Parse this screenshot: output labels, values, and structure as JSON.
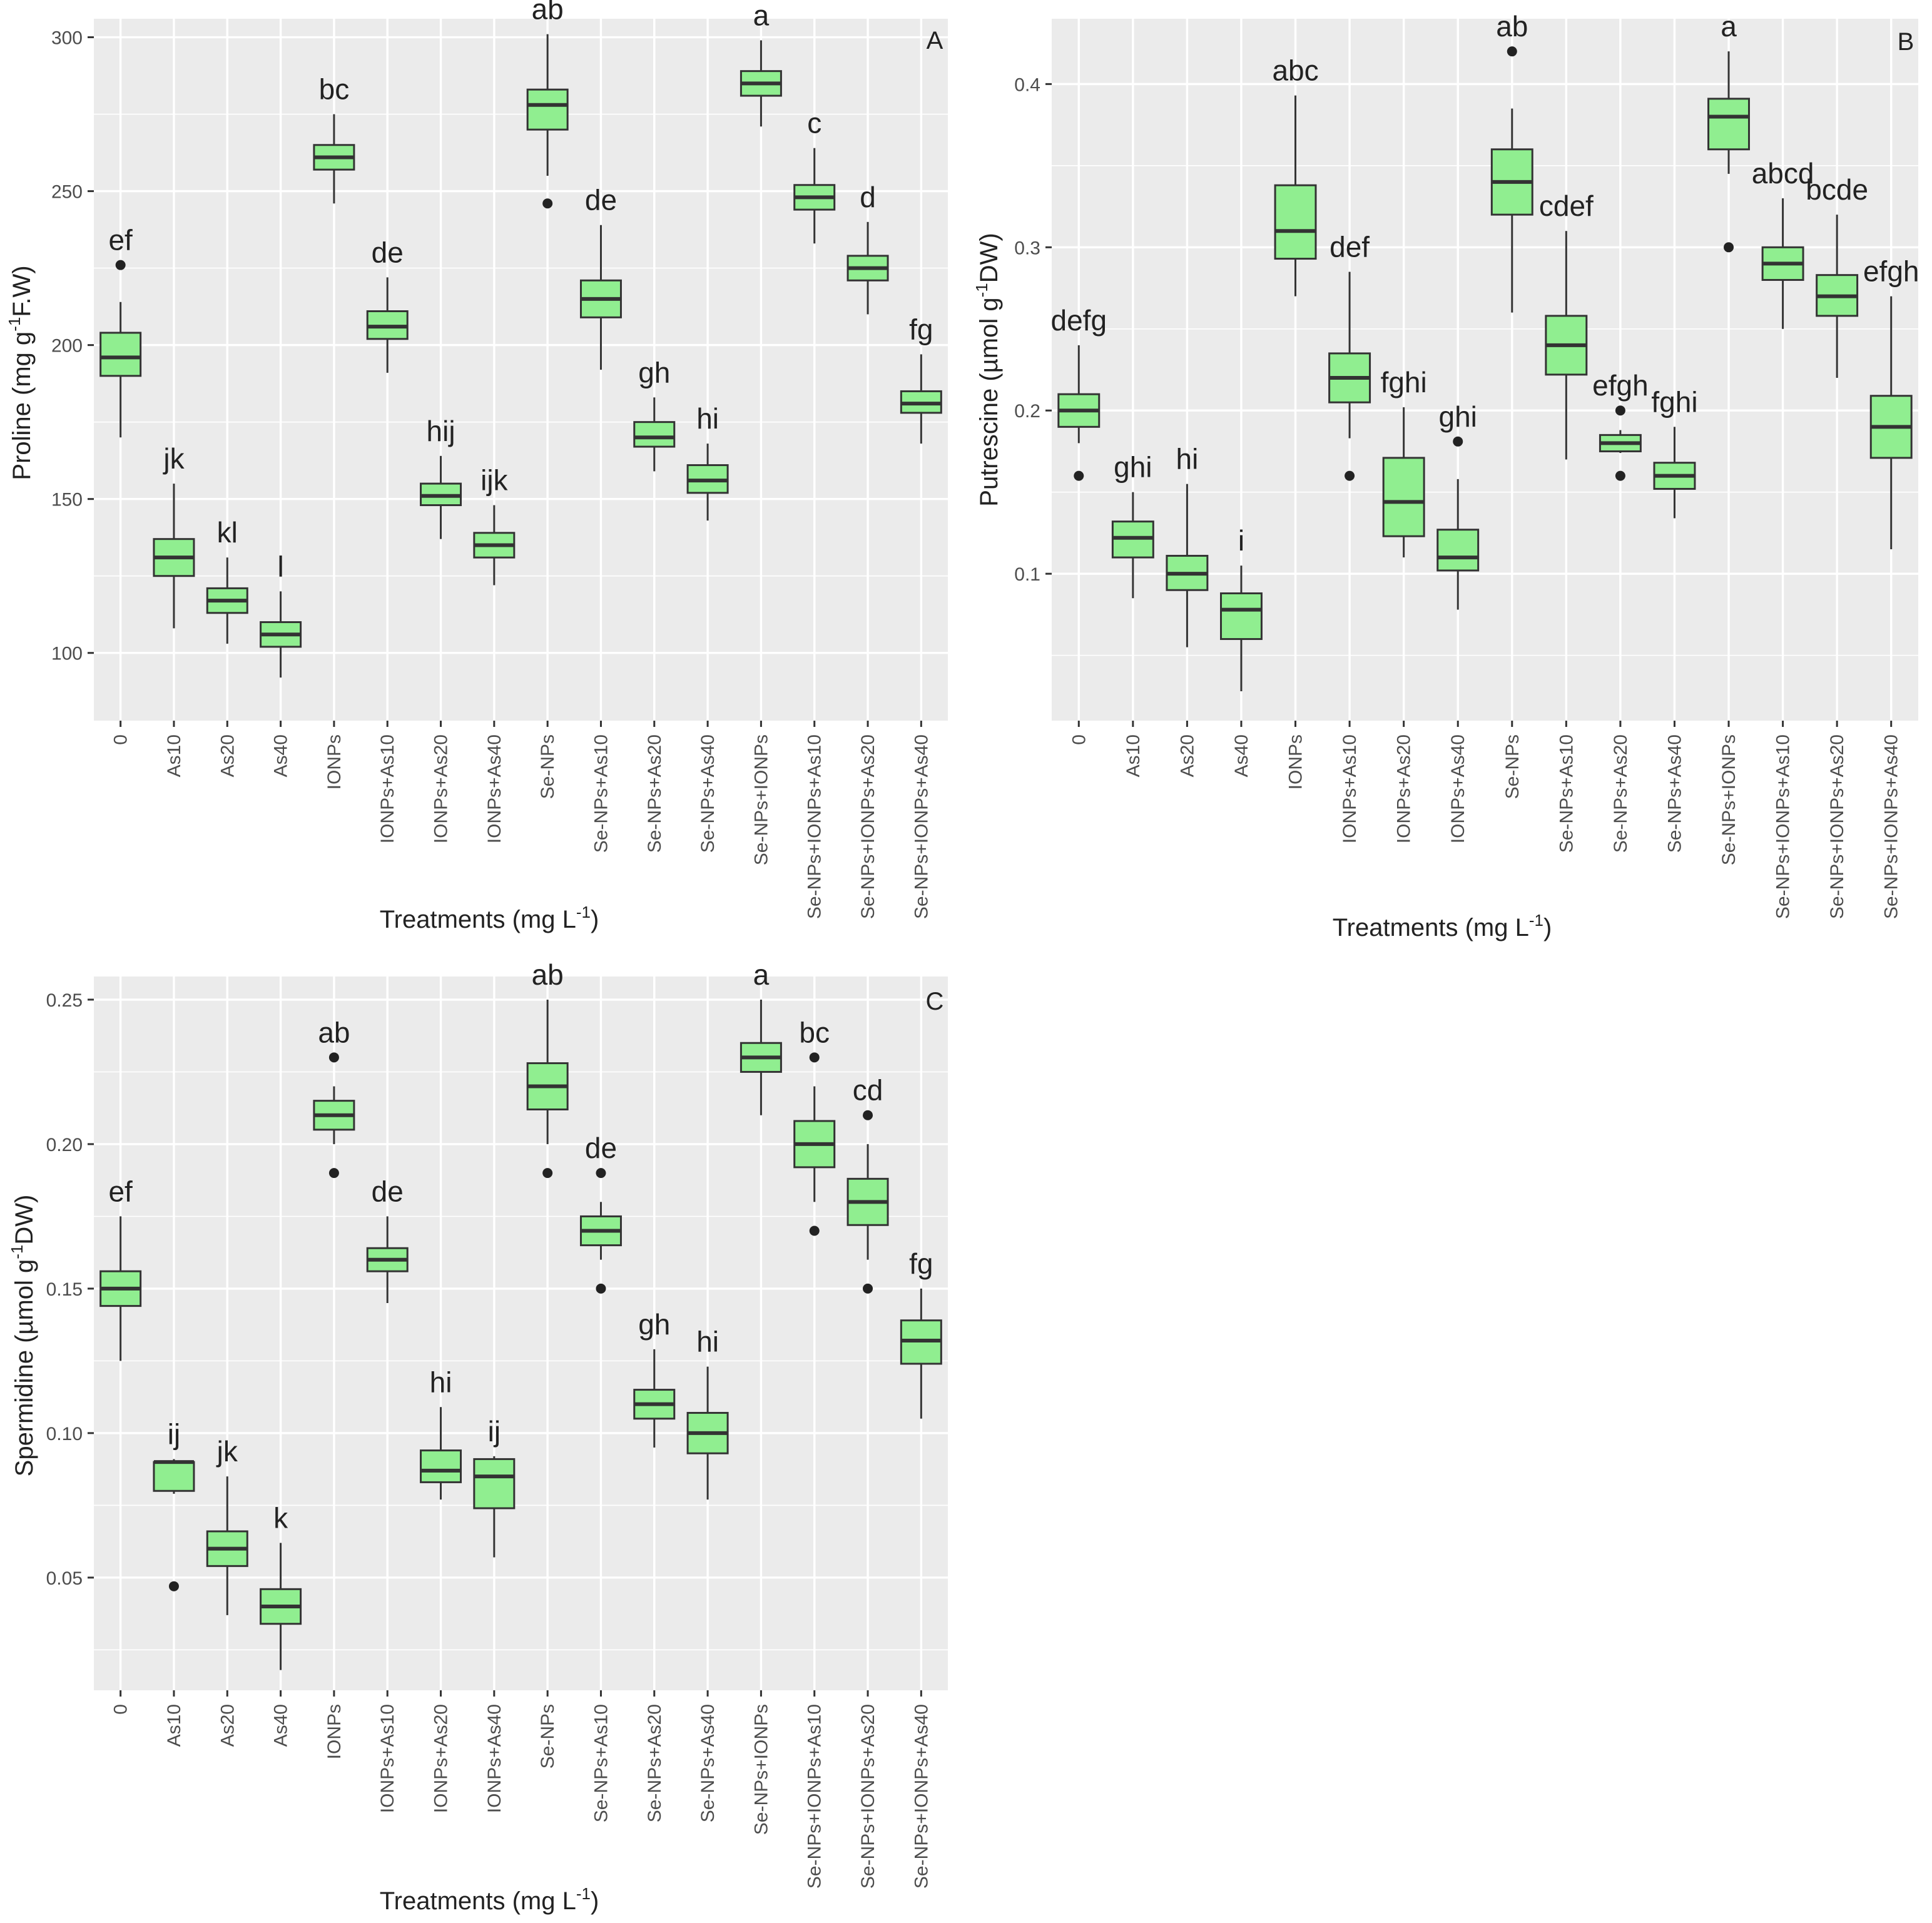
{
  "figure": {
    "background": "#ffffff",
    "panel_bg": "#ebebeb",
    "grid_color": "#ffffff",
    "box_fill": "#90ee90",
    "box_stroke": "#333333",
    "text_color": "#222222",
    "axis_text_color": "#4d4d4d"
  },
  "categories": [
    "0",
    "As10",
    "As20",
    "As40",
    "IONPs",
    "IONPs+As10",
    "IONPs+As20",
    "IONPs+As40",
    "Se-NPs",
    "Se-NPs+As10",
    "Se-NPs+As20",
    "Se-NPs+As40",
    "Se-NPs+IONPs",
    "Se-NPs+IONPs+As10",
    "Se-NPs+IONPs+As20",
    "Se-NPs+IONPs+As40"
  ],
  "xlabel": {
    "main": "Treatments (mg L",
    "sup": "-1",
    "end": ")"
  },
  "chart_data": [
    {
      "type": "box",
      "panel_label": "A",
      "ylabel": {
        "pre": "Proline (mg g",
        "sup": "-1",
        "post": "F.W)"
      },
      "ylim": [
        78,
        306
      ],
      "yticks": [
        100,
        150,
        200,
        250,
        300
      ],
      "ytick_labels": [
        "100",
        "150",
        "200",
        "250",
        "300"
      ],
      "boxes": [
        {
          "lo": 170,
          "q1": 190,
          "med": 196,
          "q3": 204,
          "hi": 214,
          "out": [
            226
          ],
          "letter": "ef"
        },
        {
          "lo": 108,
          "q1": 125,
          "med": 131,
          "q3": 137,
          "hi": 155,
          "out": [],
          "letter": "jk"
        },
        {
          "lo": 103,
          "q1": 113,
          "med": 117,
          "q3": 121,
          "hi": 131,
          "out": [],
          "letter": "kl"
        },
        {
          "lo": 92,
          "q1": 102,
          "med": 106,
          "q3": 110,
          "hi": 120,
          "out": [],
          "letter": "l"
        },
        {
          "lo": 246,
          "q1": 257,
          "med": 261,
          "q3": 265,
          "hi": 275,
          "out": [],
          "letter": "bc"
        },
        {
          "lo": 191,
          "q1": 202,
          "med": 206,
          "q3": 211,
          "hi": 222,
          "out": [],
          "letter": "de"
        },
        {
          "lo": 137,
          "q1": 148,
          "med": 151,
          "q3": 155,
          "hi": 164,
          "out": [],
          "letter": "hij"
        },
        {
          "lo": 122,
          "q1": 131,
          "med": 135,
          "q3": 139,
          "hi": 148,
          "out": [],
          "letter": "ijk"
        },
        {
          "lo": 255,
          "q1": 270,
          "med": 278,
          "q3": 283,
          "hi": 301,
          "out": [
            246
          ],
          "letter": "ab"
        },
        {
          "lo": 192,
          "q1": 209,
          "med": 215,
          "q3": 221,
          "hi": 239,
          "out": [],
          "letter": "de"
        },
        {
          "lo": 159,
          "q1": 167,
          "med": 170,
          "q3": 175,
          "hi": 183,
          "out": [],
          "letter": "gh"
        },
        {
          "lo": 143,
          "q1": 152,
          "med": 156,
          "q3": 161,
          "hi": 168,
          "out": [],
          "letter": "hi"
        },
        {
          "lo": 271,
          "q1": 281,
          "med": 285,
          "q3": 289,
          "hi": 299,
          "out": [],
          "letter": "a"
        },
        {
          "lo": 233,
          "q1": 244,
          "med": 248,
          "q3": 252,
          "hi": 264,
          "out": [],
          "letter": "c"
        },
        {
          "lo": 210,
          "q1": 221,
          "med": 225,
          "q3": 229,
          "hi": 240,
          "out": [],
          "letter": "d"
        },
        {
          "lo": 168,
          "q1": 178,
          "med": 181,
          "q3": 185,
          "hi": 197,
          "out": [],
          "letter": "fg"
        }
      ]
    },
    {
      "type": "box",
      "panel_label": "B",
      "ylabel": {
        "pre": "Putrescine (µmol g",
        "sup": "-1",
        "post": "DW)"
      },
      "ylim": [
        0.01,
        0.44
      ],
      "yticks": [
        0.1,
        0.2,
        0.3,
        0.4
      ],
      "ytick_labels": [
        "0.1",
        "0.2",
        "0.3",
        "0.4"
      ],
      "boxes": [
        {
          "lo": 0.18,
          "q1": 0.19,
          "med": 0.2,
          "q3": 0.21,
          "hi": 0.24,
          "out": [
            0.16
          ],
          "letter": "defg"
        },
        {
          "lo": 0.085,
          "q1": 0.11,
          "med": 0.122,
          "q3": 0.132,
          "hi": 0.15,
          "out": [],
          "letter": "ghi"
        },
        {
          "lo": 0.055,
          "q1": 0.09,
          "med": 0.1,
          "q3": 0.111,
          "hi": 0.155,
          "out": [],
          "letter": "hi"
        },
        {
          "lo": 0.028,
          "q1": 0.06,
          "med": 0.078,
          "q3": 0.088,
          "hi": 0.105,
          "out": [],
          "letter": "i"
        },
        {
          "lo": 0.27,
          "q1": 0.293,
          "med": 0.31,
          "q3": 0.338,
          "hi": 0.393,
          "out": [],
          "letter": "abc"
        },
        {
          "lo": 0.183,
          "q1": 0.205,
          "med": 0.22,
          "q3": 0.235,
          "hi": 0.285,
          "out": [
            0.16
          ],
          "letter": "def"
        },
        {
          "lo": 0.11,
          "q1": 0.123,
          "med": 0.144,
          "q3": 0.171,
          "hi": 0.202,
          "out": [],
          "letter": "fghi"
        },
        {
          "lo": 0.078,
          "q1": 0.102,
          "med": 0.11,
          "q3": 0.127,
          "hi": 0.158,
          "out": [
            0.181
          ],
          "letter": "ghi"
        },
        {
          "lo": 0.26,
          "q1": 0.32,
          "med": 0.34,
          "q3": 0.36,
          "hi": 0.385,
          "out": [
            0.42
          ],
          "letter": "ab"
        },
        {
          "lo": 0.17,
          "q1": 0.222,
          "med": 0.24,
          "q3": 0.258,
          "hi": 0.31,
          "out": [],
          "letter": "cdef"
        },
        {
          "lo": 0.174,
          "q1": 0.175,
          "med": 0.18,
          "q3": 0.185,
          "hi": 0.188,
          "out": [
            0.2,
            0.16
          ],
          "letter": "efgh"
        },
        {
          "lo": 0.134,
          "q1": 0.152,
          "med": 0.16,
          "q3": 0.168,
          "hi": 0.19,
          "out": [],
          "letter": "fghi"
        },
        {
          "lo": 0.345,
          "q1": 0.36,
          "med": 0.38,
          "q3": 0.391,
          "hi": 0.42,
          "out": [
            0.3
          ],
          "letter": "a"
        },
        {
          "lo": 0.25,
          "q1": 0.28,
          "med": 0.29,
          "q3": 0.3,
          "hi": 0.33,
          "out": [],
          "letter": "abcd"
        },
        {
          "lo": 0.22,
          "q1": 0.258,
          "med": 0.27,
          "q3": 0.283,
          "hi": 0.32,
          "out": [],
          "letter": "bcde"
        },
        {
          "lo": 0.115,
          "q1": 0.171,
          "med": 0.19,
          "q3": 0.209,
          "hi": 0.27,
          "out": [],
          "letter": "efgh"
        }
      ]
    },
    {
      "type": "box",
      "panel_label": "C",
      "ylabel": {
        "pre": "Spermidine (µmol g",
        "sup": "-1",
        "post": "DW)"
      },
      "ylim": [
        0.011,
        0.258
      ],
      "yticks": [
        0.05,
        0.1,
        0.15,
        0.2,
        0.25
      ],
      "ytick_labels": [
        "0.05",
        "0.10",
        "0.15",
        "0.20",
        "0.25"
      ],
      "boxes": [
        {
          "lo": 0.125,
          "q1": 0.144,
          "med": 0.15,
          "q3": 0.156,
          "hi": 0.175,
          "out": [],
          "letter": "ef"
        },
        {
          "lo": 0.079,
          "q1": 0.08,
          "med": 0.09,
          "q3": 0.09,
          "hi": 0.091,
          "out": [
            0.047
          ],
          "letter": "ij"
        },
        {
          "lo": 0.037,
          "q1": 0.054,
          "med": 0.06,
          "q3": 0.066,
          "hi": 0.085,
          "out": [],
          "letter": "jk"
        },
        {
          "lo": 0.018,
          "q1": 0.034,
          "med": 0.04,
          "q3": 0.046,
          "hi": 0.062,
          "out": [],
          "letter": "k"
        },
        {
          "lo": 0.2,
          "q1": 0.205,
          "med": 0.21,
          "q3": 0.215,
          "hi": 0.22,
          "out": [
            0.23,
            0.19
          ],
          "letter": "ab"
        },
        {
          "lo": 0.145,
          "q1": 0.156,
          "med": 0.16,
          "q3": 0.164,
          "hi": 0.175,
          "out": [],
          "letter": "de"
        },
        {
          "lo": 0.077,
          "q1": 0.083,
          "med": 0.087,
          "q3": 0.094,
          "hi": 0.109,
          "out": [],
          "letter": "hi"
        },
        {
          "lo": 0.057,
          "q1": 0.074,
          "med": 0.085,
          "q3": 0.091,
          "hi": 0.092,
          "out": [],
          "letter": "ij"
        },
        {
          "lo": 0.2,
          "q1": 0.212,
          "med": 0.22,
          "q3": 0.228,
          "hi": 0.25,
          "out": [
            0.19
          ],
          "letter": "ab"
        },
        {
          "lo": 0.16,
          "q1": 0.165,
          "med": 0.17,
          "q3": 0.175,
          "hi": 0.18,
          "out": [
            0.19,
            0.15
          ],
          "letter": "de"
        },
        {
          "lo": 0.095,
          "q1": 0.105,
          "med": 0.11,
          "q3": 0.115,
          "hi": 0.129,
          "out": [],
          "letter": "gh"
        },
        {
          "lo": 0.077,
          "q1": 0.093,
          "med": 0.1,
          "q3": 0.107,
          "hi": 0.123,
          "out": [],
          "letter": "hi"
        },
        {
          "lo": 0.21,
          "q1": 0.225,
          "med": 0.23,
          "q3": 0.235,
          "hi": 0.25,
          "out": [],
          "letter": "a"
        },
        {
          "lo": 0.18,
          "q1": 0.192,
          "med": 0.2,
          "q3": 0.208,
          "hi": 0.22,
          "out": [
            0.23,
            0.17
          ],
          "letter": "bc"
        },
        {
          "lo": 0.16,
          "q1": 0.172,
          "med": 0.18,
          "q3": 0.188,
          "hi": 0.2,
          "out": [
            0.21,
            0.15
          ],
          "letter": "cd"
        },
        {
          "lo": 0.105,
          "q1": 0.124,
          "med": 0.132,
          "q3": 0.139,
          "hi": 0.15,
          "out": [],
          "letter": "fg"
        }
      ]
    }
  ]
}
